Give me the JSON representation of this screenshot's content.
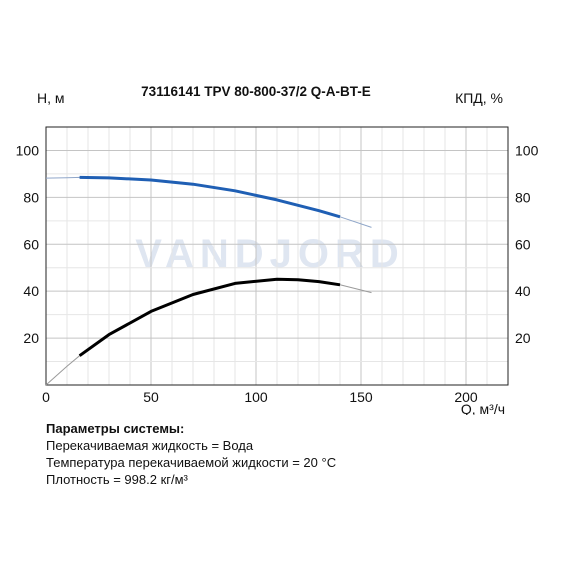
{
  "chart_data": {
    "type": "line",
    "title": "73116141 TPV 80-800-37/2 Q-A-BT-E",
    "ylabel_left": "H, м",
    "ylabel_right": "КПД, %",
    "xlabel": "Q, м³/ч",
    "xlim": [
      0,
      220
    ],
    "ylim_left": [
      0,
      110
    ],
    "ylim_right": [
      0,
      110
    ],
    "xticks": [
      "0",
      "50",
      "100",
      "150",
      "200"
    ],
    "yticks_left": [
      "20",
      "40",
      "60",
      "80",
      "100"
    ],
    "yticks_right": [
      "20",
      "40",
      "60",
      "80",
      "100"
    ],
    "watermark": "VANDJORD",
    "grid": true,
    "series": [
      {
        "axis": "left",
        "color": "#1f5fb4",
        "extension_color": "#8fa6c9",
        "x": [
          0,
          10,
          16,
          30,
          50,
          70,
          90,
          110,
          130,
          140,
          155
        ],
        "y": [
          88.2,
          88.4,
          88.5,
          88.3,
          87.4,
          85.6,
          82.8,
          78.9,
          74.3,
          71.7,
          67.2
        ],
        "operating_range": [
          16,
          140
        ]
      },
      {
        "axis": "right",
        "color": "#000000",
        "extension_color": "#9a9a9a",
        "x": [
          0,
          10,
          16,
          30,
          50,
          70,
          90,
          110,
          120,
          130,
          140,
          155
        ],
        "y": [
          0,
          8,
          12.5,
          21.5,
          31.4,
          38.6,
          43.3,
          45.1,
          44.9,
          44.1,
          42.7,
          39.4
        ],
        "operating_range": [
          16,
          140
        ]
      }
    ]
  },
  "params": {
    "title": "Параметры системы:",
    "lines": [
      "Перекачиваемая жидкость = Вода",
      "Температура перекачиваемой жидкости = 20 °C",
      "Плотность = 998.2 кг/м³"
    ]
  }
}
